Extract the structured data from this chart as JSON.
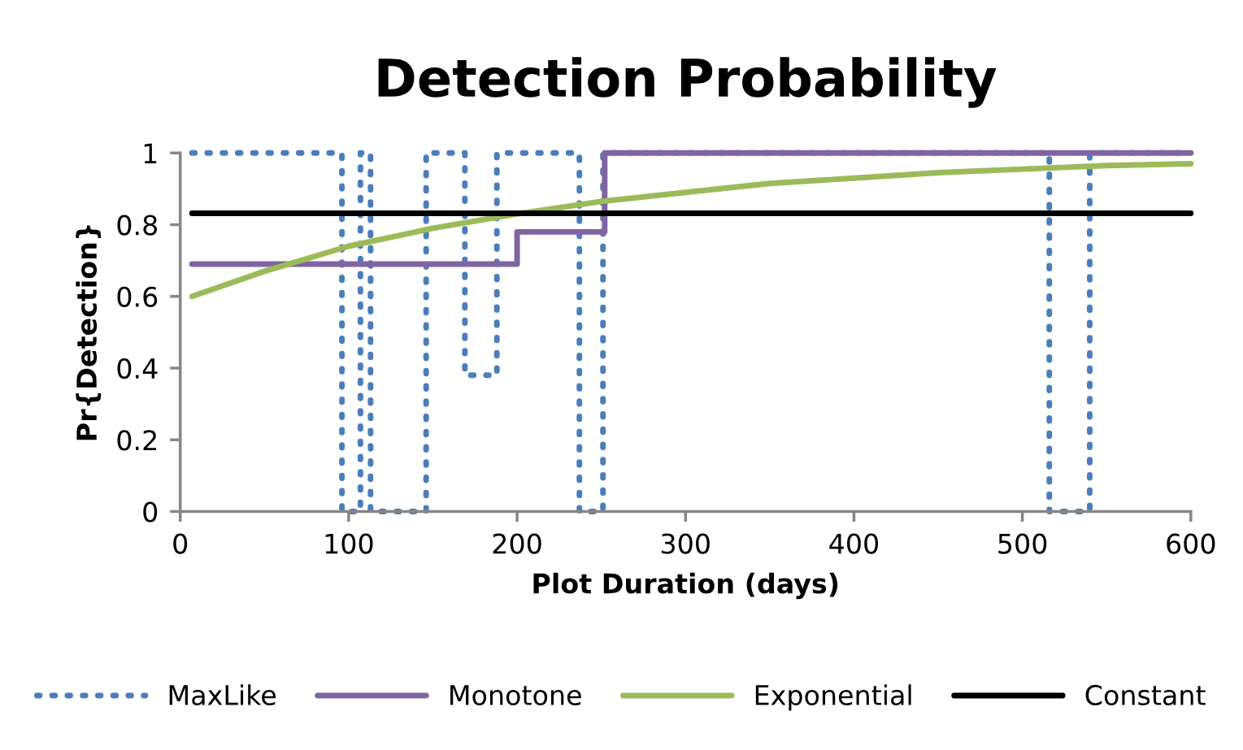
{
  "chart_data": {
    "type": "line",
    "title": "Detection Probability",
    "xlabel": "Plot Duration (days)",
    "ylabel": "Pr{Detection}",
    "xlim": [
      0,
      600
    ],
    "xticks": [
      0,
      100,
      200,
      300,
      400,
      500,
      600
    ],
    "ylim": [
      0,
      1
    ],
    "yticks": [
      0,
      0.2,
      0.4,
      0.6,
      0.8,
      1
    ],
    "grid": false,
    "legend": "bottom",
    "marker": "none",
    "series": [
      {
        "name": "MaxLike",
        "type": "step",
        "line_style": "dotted",
        "color": "#4a7ebb",
        "x": [
          7,
          96,
          107,
          113,
          146,
          169,
          188,
          237,
          251,
          516,
          540,
          600
        ],
        "values": [
          1,
          0,
          1,
          0,
          1,
          0.38,
          1,
          0,
          1,
          0,
          1,
          1
        ]
      },
      {
        "name": "Monotone",
        "type": "step",
        "line_style": "solid",
        "color": "#8064a2",
        "x": [
          7,
          200,
          252,
          600
        ],
        "values": [
          0.69,
          0.78,
          1,
          1
        ]
      },
      {
        "name": "Exponential",
        "line_style": "solid",
        "color": "#9bbb59",
        "x": [
          7,
          50,
          100,
          150,
          200,
          250,
          300,
          350,
          400,
          450,
          500,
          550,
          600
        ],
        "values": [
          0.6,
          0.67,
          0.74,
          0.79,
          0.83,
          0.865,
          0.89,
          0.915,
          0.93,
          0.945,
          0.955,
          0.965,
          0.97
        ]
      },
      {
        "name": "Constant",
        "line_style": "solid",
        "color": "#000000",
        "x": [
          7,
          600
        ],
        "values": [
          0.832,
          0.832
        ]
      }
    ]
  }
}
